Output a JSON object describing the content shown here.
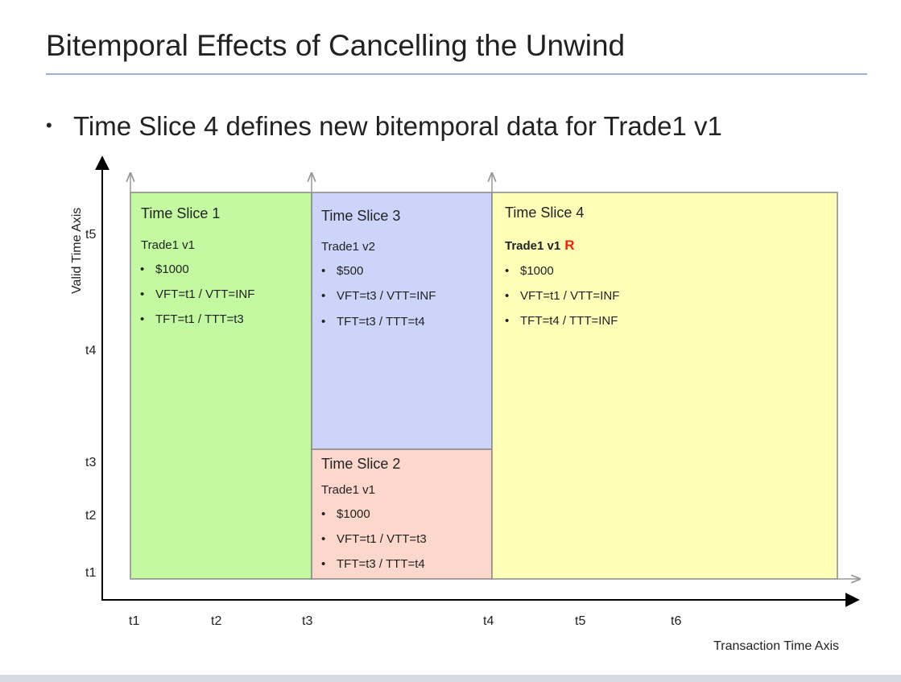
{
  "slide": {
    "title": "Bitemporal Effects of Cancelling the Unwind",
    "bullet": "Time Slice 4 defines new bitemporal data for Trade1 v1",
    "bullet_marker": "•"
  },
  "axes": {
    "y_label": "Valid Time Axis",
    "x_label": "Transaction Time Axis",
    "y_ticks": [
      "t5",
      "t4",
      "t3",
      "t2",
      "t1"
    ],
    "x_ticks": [
      "t1",
      "t2",
      "t3",
      "t4",
      "t5",
      "t6"
    ]
  },
  "slices": [
    {
      "title": "Time Slice 1",
      "trade": "Trade1 v1",
      "trade_flag": "",
      "items": [
        "$1000",
        "VFT=t1 / VTT=INF",
        "TFT=t1 / TTT=t3"
      ],
      "color": "#c3f9a0"
    },
    {
      "title": "Time Slice 3",
      "trade": "Trade1 v2",
      "trade_flag": "",
      "items": [
        "$500",
        "VFT=t3 / VTT=INF",
        "TFT=t3 / TTT=t4"
      ],
      "color": "#ccd5f9"
    },
    {
      "title": "Time Slice 2",
      "trade": "Trade1 v1",
      "trade_flag": "",
      "items": [
        "$1000",
        "VFT=t1 / VTT=t3",
        "TFT=t3 / TTT=t4"
      ],
      "color": "#fbd7cc"
    },
    {
      "title": "Time Slice 4",
      "trade": "Trade1 v1",
      "trade_flag": "R",
      "items": [
        "$1000",
        "VFT=t1 / VTT=INF",
        "TFT=t4 / TTT=INF"
      ],
      "color": "#ffffb8",
      "flag_color": "#ee2211"
    }
  ],
  "colors": {
    "axis": "#000000",
    "box_border": "#888888",
    "arrow_gray": "#999999"
  }
}
